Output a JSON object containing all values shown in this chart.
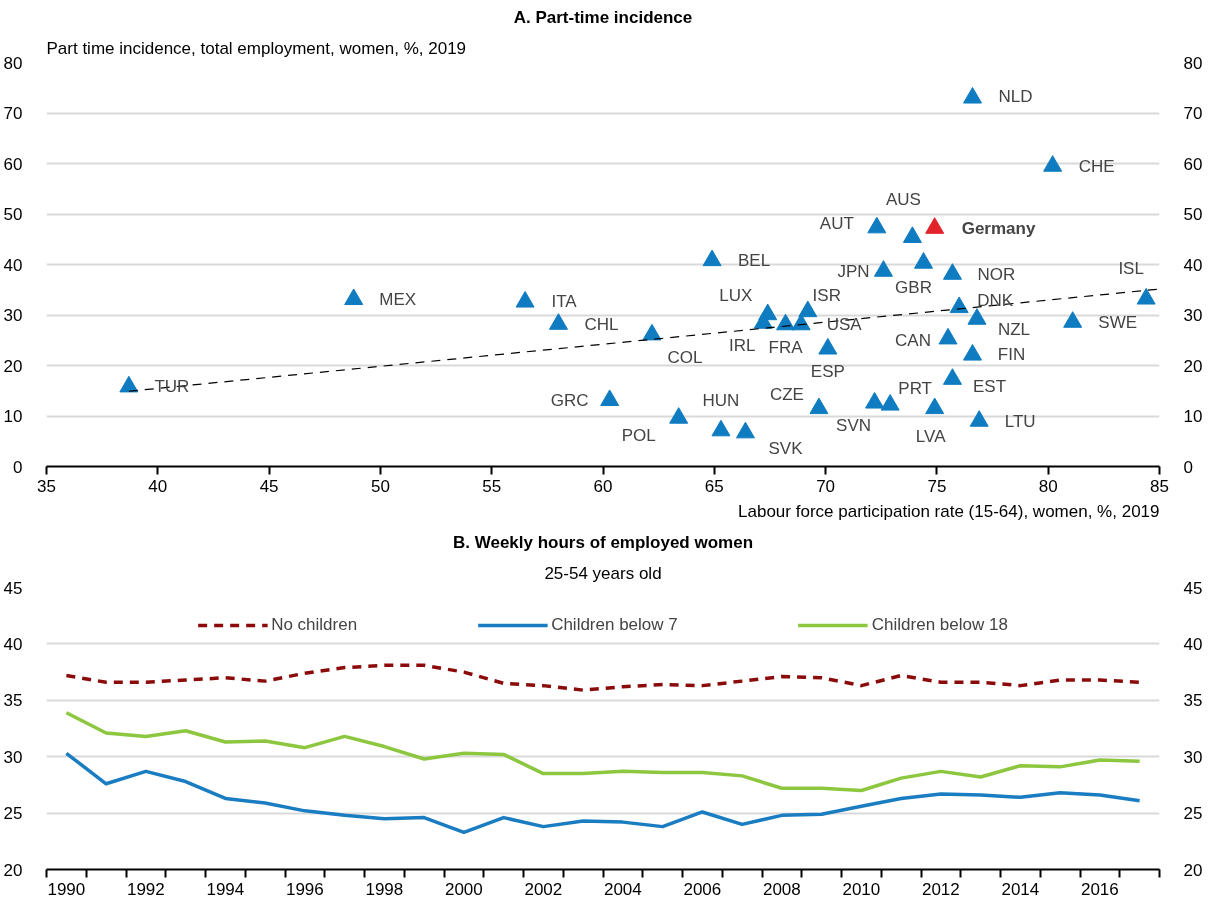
{
  "chart_data": [
    {
      "type": "scatter",
      "title": "A. Part-time incidence",
      "ylabel": "Part time incidence, total employment, women, %, 2019",
      "xlabel": "Labour force participation rate (15-64), women, %, 2019",
      "xlim": [
        35,
        85
      ],
      "xticks": [
        35,
        40,
        45,
        50,
        55,
        60,
        65,
        70,
        75,
        80,
        85
      ],
      "ylim": [
        0,
        80
      ],
      "yticks": [
        0,
        10,
        20,
        30,
        40,
        50,
        60,
        70,
        80
      ],
      "y2lim": [
        0,
        80
      ],
      "y2ticks": [
        0,
        10,
        20,
        30,
        40,
        50,
        60,
        70,
        80
      ],
      "grid": "y",
      "marker": "triangle",
      "series": [
        {
          "color": "#0f7cc1",
          "x": [
            76.6,
            80.2,
            72.3,
            73.9,
            64.9,
            72.6,
            74.4,
            75.7,
            84.4,
            76.0,
            76.8,
            81.1,
            67.4,
            67.2,
            68.2,
            68.9,
            69.2,
            70.1,
            75.5,
            76.6,
            75.7,
            62.2,
            58.0,
            56.5,
            48.8,
            38.7,
            60.3,
            63.4,
            65.3,
            66.4,
            69.7,
            72.2,
            72.9,
            74.9,
            76.9
          ],
          "values": [
            73.0,
            59.5,
            47.3,
            45.4,
            40.8,
            38.7,
            40.3,
            38.1,
            33.2,
            31.5,
            29.2,
            28.6,
            30.1,
            28.4,
            28.1,
            28.1,
            30.7,
            23.3,
            25.3,
            22.1,
            17.3,
            26.1,
            28.2,
            32.6,
            33.1,
            15.8,
            13.1,
            9.6,
            7.1,
            6.7,
            11.5,
            12.6,
            12.2,
            11.5,
            9.0
          ]
        },
        {
          "name": "Germany",
          "color": "#e3232c",
          "x": [
            74.9
          ],
          "values": [
            47.2
          ]
        },
        {
          "type": "line",
          "line_style": "dashed",
          "marker": "none",
          "color": "#000000",
          "x": [
            38.7,
            84.9
          ],
          "values": [
            14.9,
            35.1
          ]
        }
      ],
      "annotations": [
        {
          "text": "NLD",
          "x": 76.6,
          "y": 73.0
        },
        {
          "text": "CHE",
          "x": 80.2,
          "y": 59.5
        },
        {
          "text": "AUT",
          "x": 72.3,
          "y": 47.3
        },
        {
          "text": "AUS",
          "x": 73.9,
          "y": 45.4
        },
        {
          "text": "BEL",
          "x": 64.9,
          "y": 40.8
        },
        {
          "text": "JPN",
          "x": 72.6,
          "y": 38.7
        },
        {
          "text": "GBR",
          "x": 74.4,
          "y": 40.3
        },
        {
          "text": "NOR",
          "x": 75.7,
          "y": 38.1
        },
        {
          "text": "ISL",
          "x": 84.4,
          "y": 33.2
        },
        {
          "text": "DNK",
          "x": 76.0,
          "y": 31.5
        },
        {
          "text": "NZL",
          "x": 76.8,
          "y": 29.2
        },
        {
          "text": "SWE",
          "x": 81.1,
          "y": 28.6
        },
        {
          "text": "LUX",
          "x": 67.4,
          "y": 30.1
        },
        {
          "text": "IRL",
          "x": 67.2,
          "y": 28.4
        },
        {
          "text": "FRA",
          "x": 68.2,
          "y": 28.1
        },
        {
          "text": "USA",
          "x": 68.9,
          "y": 28.1
        },
        {
          "text": "ISR",
          "x": 69.2,
          "y": 30.7
        },
        {
          "text": "ESP",
          "x": 70.1,
          "y": 23.3
        },
        {
          "text": "CAN",
          "x": 75.5,
          "y": 25.3
        },
        {
          "text": "FIN",
          "x": 76.6,
          "y": 22.1
        },
        {
          "text": "EST",
          "x": 75.7,
          "y": 17.3
        },
        {
          "text": "COL",
          "x": 62.2,
          "y": 26.1
        },
        {
          "text": "CHL",
          "x": 58.0,
          "y": 28.2
        },
        {
          "text": "ITA",
          "x": 56.5,
          "y": 32.6
        },
        {
          "text": "MEX",
          "x": 48.8,
          "y": 33.1
        },
        {
          "text": "TUR",
          "x": 38.7,
          "y": 15.8
        },
        {
          "text": "GRC",
          "x": 60.3,
          "y": 13.1
        },
        {
          "text": "POL",
          "x": 63.4,
          "y": 9.6
        },
        {
          "text": "HUN",
          "x": 65.3,
          "y": 7.1
        },
        {
          "text": "SVK",
          "x": 66.4,
          "y": 6.7
        },
        {
          "text": "CZE",
          "x": 69.7,
          "y": 11.5
        },
        {
          "text": "SVN",
          "x": 72.2,
          "y": 12.6
        },
        {
          "text": "PRT",
          "x": 72.9,
          "y": 12.2
        },
        {
          "text": "LVA",
          "x": 74.9,
          "y": 11.5
        },
        {
          "text": "LTU",
          "x": 76.9,
          "y": 9.0
        }
      ]
    },
    {
      "type": "line",
      "title": "B. Weekly hours of employed women",
      "subtitle": "25-54 years old",
      "x": [
        1990,
        1991,
        1992,
        1993,
        1994,
        1995,
        1996,
        1997,
        1998,
        1999,
        2000,
        2001,
        2002,
        2003,
        2004,
        2005,
        2006,
        2007,
        2008,
        2009,
        2010,
        2011,
        2012,
        2013,
        2014,
        2015,
        2016,
        2017
      ],
      "xlim": [
        1989.5,
        2017.5
      ],
      "xticks": [
        1990,
        1992,
        1994,
        1996,
        1998,
        2000,
        2002,
        2004,
        2006,
        2008,
        2010,
        2012,
        2014,
        2016,
        {
          "value": 1989.5,
          "label": null
        },
        {
          "value": 1990.5,
          "label": null
        },
        {
          "value": 1991.5,
          "label": null
        },
        {
          "value": 1992.5,
          "label": null
        },
        {
          "value": 1993.5,
          "label": null
        },
        {
          "value": 1994.5,
          "label": null
        },
        {
          "value": 1995.5,
          "label": null
        },
        {
          "value": 1996.5,
          "label": null
        },
        {
          "value": 1997.5,
          "label": null
        },
        {
          "value": 1998.5,
          "label": null
        },
        {
          "value": 1999.5,
          "label": null
        },
        {
          "value": 2000.5,
          "label": null
        },
        {
          "value": 2001.5,
          "label": null
        },
        {
          "value": 2002.5,
          "label": null
        },
        {
          "value": 2003.5,
          "label": null
        },
        {
          "value": 2004.5,
          "label": null
        },
        {
          "value": 2005.5,
          "label": null
        },
        {
          "value": 2006.5,
          "label": null
        },
        {
          "value": 2007.5,
          "label": null
        },
        {
          "value": 2008.5,
          "label": null
        },
        {
          "value": 2009.5,
          "label": null
        },
        {
          "value": 2010.5,
          "label": null
        },
        {
          "value": 2011.5,
          "label": null
        },
        {
          "value": 2012.5,
          "label": null
        },
        {
          "value": 2013.5,
          "label": null
        },
        {
          "value": 2014.5,
          "label": null
        },
        {
          "value": 2015.5,
          "label": null
        },
        {
          "value": 2016.5,
          "label": null
        },
        {
          "value": 2017.5,
          "label": null
        }
      ],
      "ylim": [
        20,
        45
      ],
      "yticks": [
        20,
        25,
        30,
        35,
        40,
        45
      ],
      "y2lim": [
        20,
        45
      ],
      "y2ticks": [
        20,
        25,
        30,
        35,
        40,
        45
      ],
      "grid": "y",
      "legend": "top",
      "series": [
        {
          "name": "No children",
          "color": "#8b0a0a",
          "line_style": "dashed",
          "values": [
            37.2,
            36.6,
            36.6,
            36.8,
            37.0,
            36.7,
            37.4,
            37.9,
            38.1,
            38.1,
            37.5,
            36.5,
            36.3,
            35.9,
            36.2,
            36.4,
            36.3,
            36.7,
            37.1,
            37.0,
            36.3,
            37.2,
            36.6,
            36.6,
            36.3,
            36.8,
            36.8,
            36.6
          ]
        },
        {
          "name": "Children below 7",
          "color": "#1a7dc1",
          "values": [
            30.3,
            27.6,
            28.7,
            27.8,
            26.3,
            25.9,
            25.2,
            24.8,
            24.5,
            24.6,
            23.3,
            24.6,
            23.8,
            24.3,
            24.2,
            23.8,
            25.1,
            24.0,
            24.8,
            24.9,
            25.6,
            26.3,
            26.7,
            26.6,
            26.4,
            26.8,
            26.6,
            26.1
          ]
        },
        {
          "name": "Children below 18",
          "color": "#8dc63f",
          "values": [
            33.9,
            32.1,
            31.8,
            32.3,
            31.3,
            31.4,
            30.8,
            31.8,
            30.9,
            29.8,
            30.3,
            30.2,
            28.5,
            28.5,
            28.7,
            28.6,
            28.6,
            28.3,
            27.2,
            27.2,
            27.0,
            28.1,
            28.7,
            28.2,
            29.2,
            29.1,
            29.7,
            29.6
          ]
        }
      ]
    }
  ]
}
